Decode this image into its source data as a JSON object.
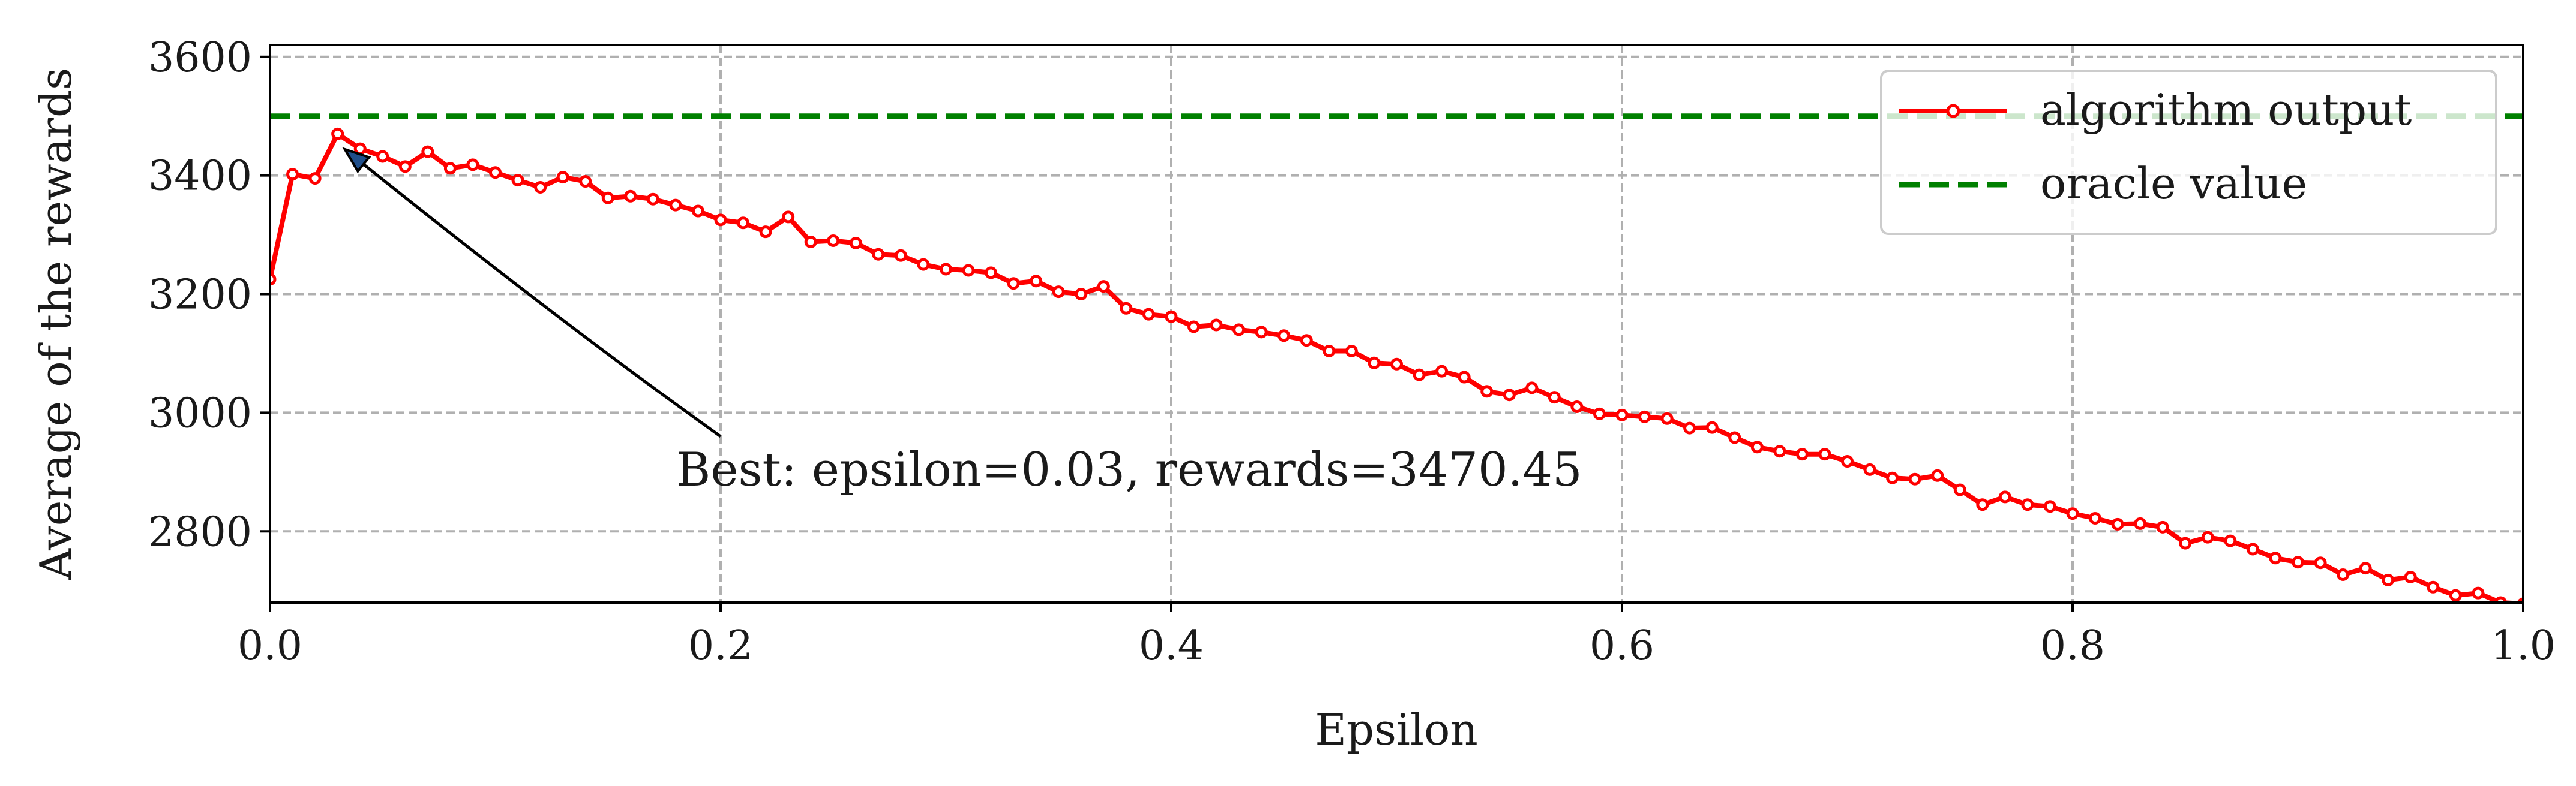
{
  "chart_data": {
    "type": "line",
    "title": "",
    "xlabel": "Epsilon",
    "ylabel": "Average of the rewards",
    "xlim": [
      0.0,
      1.0
    ],
    "ylim": [
      2680,
      3620
    ],
    "xticks": [
      0.0,
      0.2,
      0.4,
      0.6,
      0.8,
      1.0
    ],
    "xtick_labels": [
      "0.0",
      "0.2",
      "0.4",
      "0.6",
      "0.8",
      "1.0"
    ],
    "yticks": [
      2800,
      3000,
      3200,
      3400,
      3600
    ],
    "ytick_labels": [
      "2800",
      "3000",
      "3200",
      "3400",
      "3600"
    ],
    "grid": true,
    "legend_position": "top-right",
    "series": [
      {
        "name": "algorithm output",
        "color": "#ff0000",
        "style": "solid line with circle markers",
        "x": [
          0.0,
          0.01,
          0.02,
          0.03,
          0.04,
          0.05,
          0.06,
          0.07,
          0.08,
          0.09,
          0.1,
          0.11,
          0.12,
          0.13,
          0.14,
          0.15,
          0.16,
          0.17,
          0.18,
          0.19,
          0.2,
          0.21,
          0.22,
          0.23,
          0.24,
          0.25,
          0.26,
          0.27,
          0.28,
          0.29,
          0.3,
          0.31,
          0.32,
          0.33,
          0.34,
          0.35,
          0.36,
          0.37,
          0.38,
          0.39,
          0.4,
          0.41,
          0.42,
          0.43,
          0.44,
          0.45,
          0.46,
          0.47,
          0.48,
          0.49,
          0.5,
          0.51,
          0.52,
          0.53,
          0.54,
          0.55,
          0.56,
          0.57,
          0.58,
          0.59,
          0.6,
          0.61,
          0.62,
          0.63,
          0.64,
          0.65,
          0.66,
          0.67,
          0.68,
          0.69,
          0.7,
          0.71,
          0.72,
          0.73,
          0.74,
          0.75,
          0.76,
          0.77,
          0.78,
          0.79,
          0.8,
          0.81,
          0.82,
          0.83,
          0.84,
          0.85,
          0.86,
          0.87,
          0.88,
          0.89,
          0.9,
          0.91,
          0.92,
          0.93,
          0.94,
          0.95,
          0.96,
          0.97,
          0.98,
          0.99,
          1.0
        ],
        "y": [
          3225,
          3402,
          3395,
          3470,
          3445,
          3432,
          3415,
          3440,
          3412,
          3418,
          3405,
          3392,
          3380,
          3397,
          3390,
          3362,
          3365,
          3360,
          3350,
          3340,
          3325,
          3320,
          3305,
          3330,
          3288,
          3290,
          3286,
          3267,
          3265,
          3250,
          3242,
          3240,
          3236,
          3218,
          3222,
          3204,
          3200,
          3213,
          3176,
          3166,
          3162,
          3145,
          3148,
          3140,
          3136,
          3130,
          3122,
          3104,
          3104,
          3084,
          3082,
          3064,
          3070,
          3060,
          3036,
          3030,
          3042,
          3026,
          3010,
          2998,
          2996,
          2993,
          2990,
          2974,
          2975,
          2958,
          2942,
          2935,
          2930,
          2930,
          2918,
          2904,
          2890,
          2888,
          2894,
          2870,
          2845,
          2858,
          2845,
          2842,
          2830,
          2822,
          2812,
          2813,
          2807,
          2780,
          2790,
          2784,
          2770,
          2755,
          2748,
          2747,
          2727,
          2738,
          2718,
          2723,
          2706,
          2692,
          2696,
          2680,
          2678
        ]
      },
      {
        "name": "oracle value",
        "color": "#008000",
        "style": "dashed line",
        "y_constant": 3500
      }
    ],
    "annotations": [
      {
        "text": "Best: epsilon=0.03, rewards=3470.45",
        "point": [
          0.03,
          3470.45
        ],
        "text_anchor": [
          0.2,
          2960
        ]
      }
    ]
  }
}
